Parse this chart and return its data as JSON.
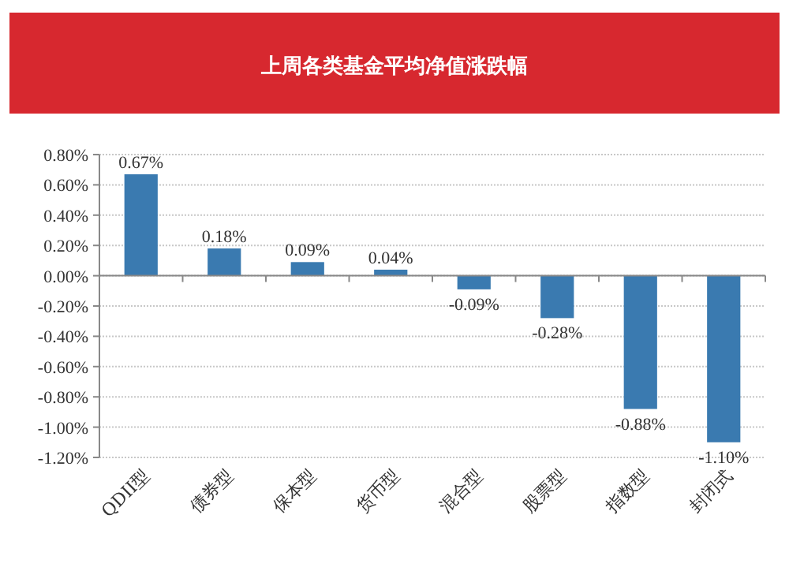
{
  "chart_data": {
    "type": "bar",
    "title": "上周各类基金平均净值涨跌幅",
    "categories": [
      "QDII型",
      "债券型",
      "保本型",
      "货币型",
      "混合型",
      "股票型",
      "指数型",
      "封闭式"
    ],
    "values": [
      0.67,
      0.18,
      0.09,
      0.04,
      -0.09,
      -0.28,
      -0.88,
      -1.1
    ],
    "value_labels": [
      "0.67%",
      "0.18%",
      "0.09%",
      "0.04%",
      "-0.09%",
      "-0.28%",
      "-0.88%",
      "-1.10%"
    ],
    "color": "#3a7ab0",
    "ylim": [
      -1.2,
      0.8
    ],
    "yticks": [
      {
        "value": 0.8,
        "label": "0.80%"
      },
      {
        "value": 0.6,
        "label": "0.60%"
      },
      {
        "value": 0.4,
        "label": "0.40%"
      },
      {
        "value": 0.2,
        "label": "0.20%"
      },
      {
        "value": 0,
        "label": "0.00%"
      },
      {
        "value": -0.2,
        "label": "-0.20%"
      },
      {
        "value": -0.4,
        "label": "-0.40%"
      },
      {
        "value": -0.6,
        "label": "-0.60%"
      },
      {
        "value": -0.8,
        "label": "-0.80%"
      },
      {
        "value": -1.0,
        "label": "-1.00%"
      },
      {
        "value": -1.2,
        "label": "-1.20%"
      }
    ],
    "grid": "y"
  }
}
